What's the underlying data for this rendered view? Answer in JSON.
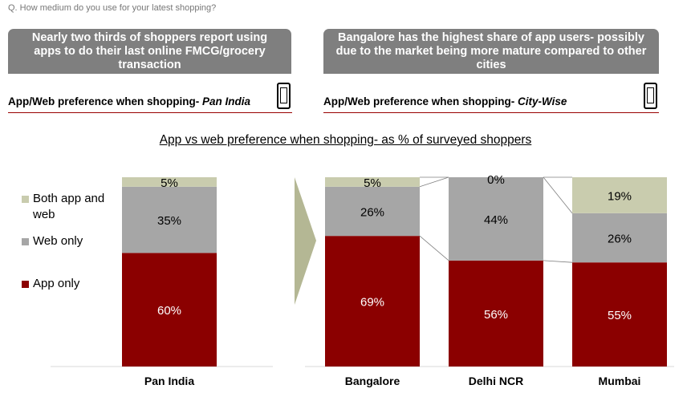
{
  "question": "Q. How medium do you use for your latest shopping?",
  "banners": {
    "left": "Nearly two thirds of shoppers report using apps to do their last online FMCG/grocery transaction",
    "right": "Bangalore has the highest share of app users- possibly due to the market being more mature compared to other cities"
  },
  "sections": {
    "left_prefix": "App/Web preference when shopping- ",
    "left_em": "Pan India",
    "right_prefix": "App/Web preference when shopping- ",
    "right_em": "City-Wise"
  },
  "icons": {
    "section": "smartphone-icon",
    "divider": "chevron-arrow"
  },
  "colors": {
    "app_only": "#8b0000",
    "web_only": "#a6a6a6",
    "both": "#c9ccae",
    "banner": "#7f7f7f",
    "divider_arrow": "#b4b794"
  },
  "chart_data": {
    "type": "bar",
    "stacked": true,
    "title": "App vs web preference when shopping- as % of surveyed shoppers",
    "categories": [
      "Pan India",
      "Bangalore",
      "Delhi NCR",
      "Mumbai"
    ],
    "series": [
      {
        "name": "App only",
        "values": [
          60,
          69,
          56,
          55
        ],
        "labels": [
          "60%",
          "69%",
          "56%",
          "55%"
        ]
      },
      {
        "name": "Web only",
        "values": [
          35,
          26,
          44,
          26
        ],
        "labels": [
          "35%",
          "26%",
          "44%",
          "26%"
        ]
      },
      {
        "name": "Both app and web",
        "values": [
          5,
          5,
          0,
          19
        ],
        "labels": [
          "5%",
          "5%",
          "0%",
          "19%"
        ]
      }
    ],
    "legend_entries": [
      "Both app and web",
      "Web only",
      "App only"
    ],
    "legend_position": "left",
    "ylim": [
      0,
      100
    ]
  }
}
